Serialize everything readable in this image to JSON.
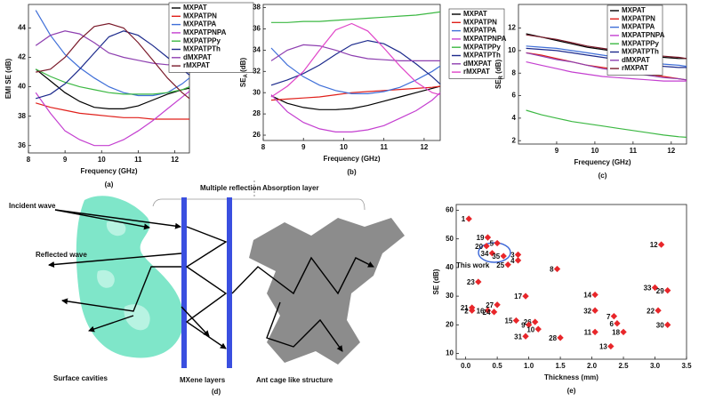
{
  "chart_data": [
    {
      "type": "line",
      "panel_label": "(a)",
      "x_label": "Frequency (GHz)",
      "y_label": "EMI SE (dB)",
      "x": [
        8.2,
        8.6,
        9.0,
        9.4,
        9.8,
        10.2,
        10.6,
        11.0,
        11.4,
        11.8,
        12.2,
        12.4
      ],
      "xlim": [
        8,
        12.4
      ],
      "xticks": [
        8,
        9,
        10,
        11,
        12
      ],
      "ylim": [
        35.5,
        45.6
      ],
      "yticks": [
        36,
        38,
        40,
        42,
        44
      ],
      "legend": "outside upper right",
      "series": [
        {
          "name": "MXPAT",
          "color": "#000000",
          "values": [
            41.2,
            40.4,
            39.6,
            39.0,
            38.6,
            38.5,
            38.5,
            38.7,
            39.1,
            39.5,
            39.8,
            39.9
          ]
        },
        {
          "name": "MXPATPN",
          "color": "#e0201b",
          "values": [
            38.9,
            38.6,
            38.4,
            38.2,
            38.1,
            38.0,
            37.9,
            37.9,
            37.8,
            37.8,
            37.8,
            37.8
          ]
        },
        {
          "name": "MXPATPA",
          "color": "#3f6fd8",
          "values": [
            45.2,
            43.5,
            42.2,
            41.3,
            40.6,
            40.0,
            39.6,
            39.4,
            39.4,
            39.6,
            40.2,
            40.6
          ]
        },
        {
          "name": "MXPATPNPA",
          "color": "#c43fd0",
          "values": [
            39.6,
            38.2,
            37.0,
            36.4,
            36.0,
            36.0,
            36.4,
            37.0,
            37.7,
            38.5,
            39.3,
            39.7
          ]
        },
        {
          "name": "MXPATPPy",
          "color": "#3cb843",
          "values": [
            41.2,
            40.7,
            40.3,
            40.0,
            39.8,
            39.6,
            39.5,
            39.5,
            39.5,
            39.6,
            39.8,
            40.0
          ]
        },
        {
          "name": "MXPATPTh",
          "color": "#1c2a8c",
          "values": [
            39.2,
            39.5,
            40.2,
            41.2,
            42.3,
            43.4,
            43.8,
            43.5,
            42.8,
            42.0,
            41.2,
            40.8
          ]
        },
        {
          "name": "dMXPAT",
          "color": "#8e3fb0",
          "values": [
            42.8,
            43.5,
            43.8,
            43.6,
            43.0,
            42.3,
            42.0,
            41.8,
            41.6,
            41.5,
            41.5,
            41.5
          ]
        },
        {
          "name": "rMXPAT",
          "color": "#7a1a2a",
          "values": [
            41.0,
            41.2,
            42.0,
            43.2,
            44.1,
            44.3,
            44.0,
            43.0,
            41.8,
            40.6,
            39.6,
            39.2
          ]
        }
      ]
    },
    {
      "type": "line",
      "panel_label": "(b)",
      "x_label": "Frequency (GHz)",
      "y_label": {
        "main": "SE",
        "sub": "A",
        "unit": " (dB)"
      },
      "x": [
        8.2,
        8.6,
        9.0,
        9.4,
        9.8,
        10.2,
        10.6,
        11.0,
        11.4,
        11.8,
        12.2,
        12.4
      ],
      "xlim": [
        8,
        12.4
      ],
      "xticks": [
        8,
        9,
        10,
        11,
        12
      ],
      "ylim": [
        25.5,
        38.3
      ],
      "yticks": [
        26,
        28,
        30,
        32,
        34,
        36,
        38
      ],
      "legend": "outside upper right",
      "series": [
        {
          "name": "MXPAT",
          "color": "#000000",
          "values": [
            29.7,
            29.0,
            28.6,
            28.4,
            28.4,
            28.5,
            28.8,
            29.2,
            29.6,
            30.0,
            30.4,
            30.6
          ]
        },
        {
          "name": "MXPATPN",
          "color": "#e0201b",
          "values": [
            29.3,
            29.4,
            29.5,
            29.6,
            29.8,
            30.0,
            30.1,
            30.2,
            30.3,
            30.4,
            30.5,
            30.6
          ]
        },
        {
          "name": "MXPATPA",
          "color": "#3f6fd8",
          "values": [
            34.2,
            32.6,
            31.5,
            30.7,
            30.2,
            29.9,
            29.9,
            30.1,
            30.5,
            31.2,
            32.0,
            32.5
          ]
        },
        {
          "name": "MXPATPNPA",
          "color": "#c43fd0",
          "values": [
            29.8,
            28.2,
            27.2,
            26.6,
            26.3,
            26.3,
            26.5,
            26.9,
            27.6,
            28.3,
            29.3,
            30.0
          ]
        },
        {
          "name": "MXPATPPy",
          "color": "#3cb843",
          "values": [
            36.6,
            36.6,
            36.7,
            36.7,
            36.8,
            36.9,
            37.0,
            37.1,
            37.2,
            37.3,
            37.5,
            37.6
          ]
        },
        {
          "name": "MXPATPTh",
          "color": "#1c2a8c",
          "values": [
            30.7,
            31.2,
            31.8,
            32.6,
            33.6,
            34.5,
            34.9,
            34.6,
            33.8,
            32.7,
            31.5,
            30.8
          ]
        },
        {
          "name": "dMXPAT",
          "color": "#8e3fb0",
          "values": [
            33.0,
            34.0,
            34.5,
            34.4,
            34.0,
            33.5,
            33.2,
            33.1,
            33.0,
            33.0,
            33.0,
            33.0
          ]
        },
        {
          "name": "rMXPAT",
          "color": "#e045c8",
          "values": [
            29.6,
            30.6,
            32.0,
            34.0,
            35.9,
            36.5,
            35.8,
            34.2,
            32.5,
            31.0,
            30.0,
            29.8
          ]
        }
      ]
    },
    {
      "type": "line",
      "panel_label": "(c)",
      "x_label": "Frequency (GHz)",
      "y_label": {
        "main": "SE",
        "sub": "R",
        "unit": " (dB)"
      },
      "x": [
        8.2,
        8.6,
        9.0,
        9.4,
        9.8,
        10.2,
        10.6,
        11.0,
        11.4,
        11.8,
        12.2,
        12.4
      ],
      "xlim": [
        8,
        12.4
      ],
      "xticks": [
        9,
        10,
        11,
        12
      ],
      "ylim": [
        1.7,
        14.1
      ],
      "yticks": [
        2,
        4,
        6,
        8,
        10,
        12
      ],
      "legend": "upper right",
      "series": [
        {
          "name": "MXPAT",
          "color": "#000000",
          "values": [
            11.5,
            11.2,
            10.9,
            10.6,
            10.3,
            10.1,
            9.9,
            9.7,
            9.5,
            9.4,
            9.3,
            9.3
          ]
        },
        {
          "name": "MXPATPN",
          "color": "#e0201b",
          "values": [
            9.8,
            9.6,
            9.3,
            9.0,
            8.7,
            8.5,
            8.3,
            8.1,
            7.9,
            7.7,
            7.5,
            7.4
          ]
        },
        {
          "name": "MXPATPA",
          "color": "#3f6fd8",
          "values": [
            10.4,
            10.3,
            10.2,
            10.0,
            9.8,
            9.6,
            9.4,
            9.2,
            9.0,
            8.8,
            8.7,
            8.6
          ]
        },
        {
          "name": "MXPATPNPA",
          "color": "#c43fd0",
          "values": [
            9.0,
            8.7,
            8.4,
            8.1,
            7.9,
            7.7,
            7.6,
            7.5,
            7.4,
            7.3,
            7.3,
            7.3
          ]
        },
        {
          "name": "MXPATPPy",
          "color": "#3cb843",
          "values": [
            4.7,
            4.3,
            4.0,
            3.7,
            3.5,
            3.3,
            3.1,
            2.9,
            2.7,
            2.5,
            2.35,
            2.3
          ]
        },
        {
          "name": "MXPATPTh",
          "color": "#1c2a8c",
          "values": [
            10.2,
            10.1,
            10.0,
            9.8,
            9.6,
            9.4,
            9.2,
            9.0,
            8.8,
            8.6,
            8.5,
            8.5
          ]
        },
        {
          "name": "dMXPAT",
          "color": "#8e3fb0",
          "values": [
            9.8,
            9.5,
            9.2,
            9.0,
            8.7,
            8.4,
            8.2,
            8.0,
            7.8,
            7.6,
            7.5,
            7.4
          ]
        },
        {
          "name": "rMXPAT",
          "color": "#7a1a2a",
          "values": [
            11.4,
            11.2,
            11.0,
            10.7,
            10.4,
            10.2,
            10.0,
            9.8,
            9.6,
            9.5,
            9.4,
            9.3
          ]
        }
      ]
    },
    {
      "type": "scatter",
      "panel_label": "(e)",
      "x_label": "Thickness (mm)",
      "y_label": "SE (dB)",
      "color": "#e8262a",
      "annotation": "This work",
      "xlim": [
        -0.15,
        3.5
      ],
      "xticks": [
        {
          "value": 0,
          "label": "0.0"
        },
        0.5,
        {
          "value": 1,
          "label": "1.0"
        },
        1.5,
        {
          "value": 2,
          "label": "2.0"
        },
        2.5,
        {
          "value": 3,
          "label": "3.0"
        },
        3.5
      ],
      "ylim": [
        8,
        62
      ],
      "yticks": [
        10,
        20,
        30,
        40,
        50,
        60
      ],
      "point_labels": [
        "1",
        "19",
        "20",
        "5",
        "34",
        "35",
        "3",
        "4",
        "25",
        "23",
        "8",
        "12",
        "33",
        "29",
        "22",
        "30",
        "14",
        "32",
        "7",
        "6",
        "18",
        "11",
        "13",
        "17",
        "21",
        "2",
        "16",
        "27",
        "24",
        "15",
        "26",
        "9",
        "10",
        "31",
        "28"
      ],
      "x": [
        0.05,
        0.35,
        0.33,
        0.5,
        0.42,
        0.6,
        0.83,
        0.83,
        0.67,
        0.2,
        1.45,
        3.1,
        3.0,
        3.2,
        3.05,
        3.2,
        2.05,
        2.05,
        2.35,
        2.4,
        2.5,
        2.05,
        2.3,
        0.95,
        0.1,
        0.1,
        0.35,
        0.5,
        0.45,
        0.8,
        1.1,
        1.0,
        1.15,
        0.95,
        1.5
      ],
      "values": [
        57,
        50.5,
        47.5,
        48.5,
        45,
        44,
        44.5,
        42.5,
        41,
        35,
        39.5,
        48,
        33,
        32,
        25,
        20,
        30.5,
        25,
        23,
        20.5,
        17.5,
        17.5,
        12.5,
        30,
        26,
        25,
        25,
        27,
        24.5,
        21.5,
        21,
        20,
        18.5,
        16,
        15.5
      ]
    }
  ],
  "diagram": {
    "panel_label": "(d)",
    "top_left": "Multiple reflection",
    "top_right": "Absorption layer",
    "incident": "Incident wave",
    "reflected": "Reflected wave",
    "captions": [
      "Surface cavities",
      "MXene layers",
      "Ant cage like structure"
    ]
  }
}
